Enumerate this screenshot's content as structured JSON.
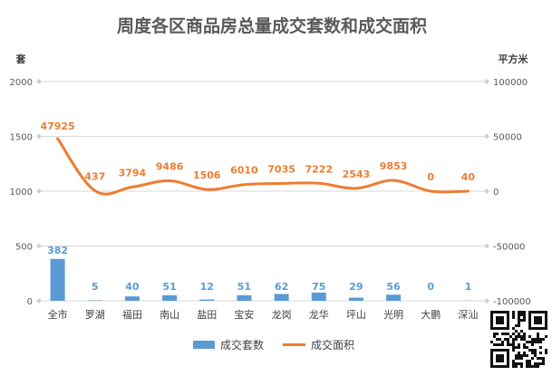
{
  "chart_data": {
    "type": "bar",
    "title": "周度各区商品房总量成交套数和成交面积",
    "left_unit": "套",
    "right_unit": "平方米",
    "categories": [
      "全市",
      "罗湖",
      "福田",
      "南山",
      "盐田",
      "宝安",
      "龙岗",
      "龙华",
      "坪山",
      "光明",
      "大鹏",
      "深汕"
    ],
    "series": [
      {
        "name": "成交套数",
        "type": "bar",
        "axis": "left",
        "color": "#5b9bd5",
        "values": [
          382,
          5,
          40,
          51,
          12,
          51,
          62,
          75,
          29,
          56,
          0,
          1
        ]
      },
      {
        "name": "成交面积",
        "type": "line",
        "axis": "right",
        "color": "#ed7d31",
        "values": [
          47925,
          437,
          3794,
          9486,
          1506,
          6010,
          7035,
          7222,
          2543,
          9853,
          0,
          40
        ]
      }
    ],
    "left_axis": {
      "ylim": [
        0,
        2000
      ],
      "ticks": [
        "0",
        "500",
        "1000",
        "1500",
        "2000"
      ]
    },
    "right_axis": {
      "ylim": [
        -100000,
        100000
      ],
      "ticks": [
        "-100000",
        "-50000",
        "0",
        "50000",
        "100000"
      ]
    },
    "grid": true,
    "legend": "bottom"
  }
}
